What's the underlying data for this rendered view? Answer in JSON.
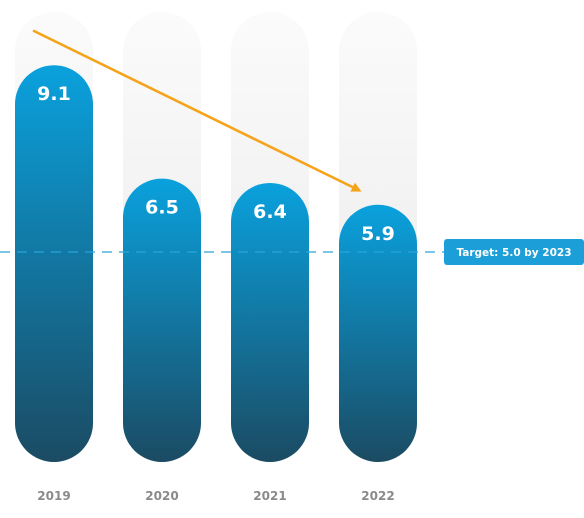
{
  "chart_data": {
    "type": "bar",
    "categories": [
      "2019",
      "2020",
      "2021",
      "2022"
    ],
    "values": [
      9.1,
      6.5,
      6.4,
      5.9
    ],
    "value_labels": [
      "9.1",
      "6.5",
      "6.4",
      "5.9"
    ],
    "ylim": [
      0,
      10
    ],
    "grid": false,
    "target": {
      "value": 5.0,
      "label": "Target: 5.0 by 2023"
    },
    "trend_arrow": {
      "from_category": "2019",
      "to_category": "2022"
    },
    "colors": {
      "bar_top": "#0aa1dd",
      "bar_bottom": "#1b4b63",
      "track": "#f3f3f3",
      "target_line": "#2aa5dc",
      "target_badge": "#1c9fd8",
      "arrow": "#f5a31a",
      "axis_text": "#8a8a8a"
    }
  }
}
